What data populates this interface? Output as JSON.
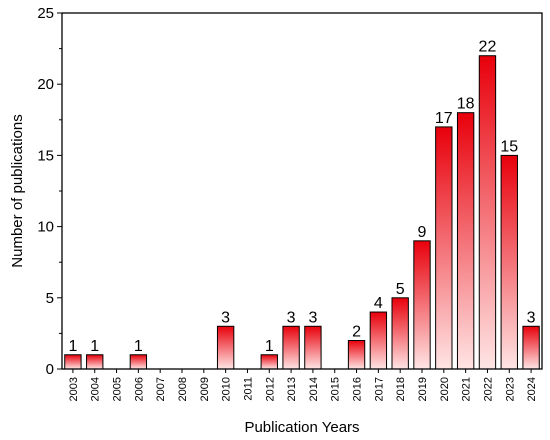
{
  "chart_data": {
    "type": "bar",
    "xlabel": "Publication Years",
    "ylabel": "Number of publications",
    "categories": [
      "2003",
      "2004",
      "2005",
      "2006",
      "2007",
      "2008",
      "2009",
      "2010",
      "2011",
      "2012",
      "2013",
      "2014",
      "2015",
      "2016",
      "2017",
      "2018",
      "2019",
      "2020",
      "2021",
      "2022",
      "2023",
      "2024"
    ],
    "values": [
      1,
      1,
      0,
      1,
      0,
      0,
      0,
      3,
      0,
      1,
      3,
      3,
      0,
      2,
      4,
      5,
      9,
      17,
      18,
      22,
      15,
      3
    ],
    "data_labels": [
      "1",
      "1",
      "",
      "1",
      "",
      "",
      "",
      "3",
      "",
      "1",
      "3",
      "3",
      "",
      "2",
      "4",
      "5",
      "9",
      "17",
      "18",
      "22",
      "15",
      "3"
    ],
    "ylim": [
      0,
      25
    ],
    "yticks": [
      0,
      5,
      10,
      15,
      20,
      25
    ],
    "grid": false,
    "colors": {
      "bar_top": "#e8000b",
      "bar_bottom": "#ffe5e5",
      "bar_stroke": "#000000",
      "axis": "#000000"
    }
  }
}
